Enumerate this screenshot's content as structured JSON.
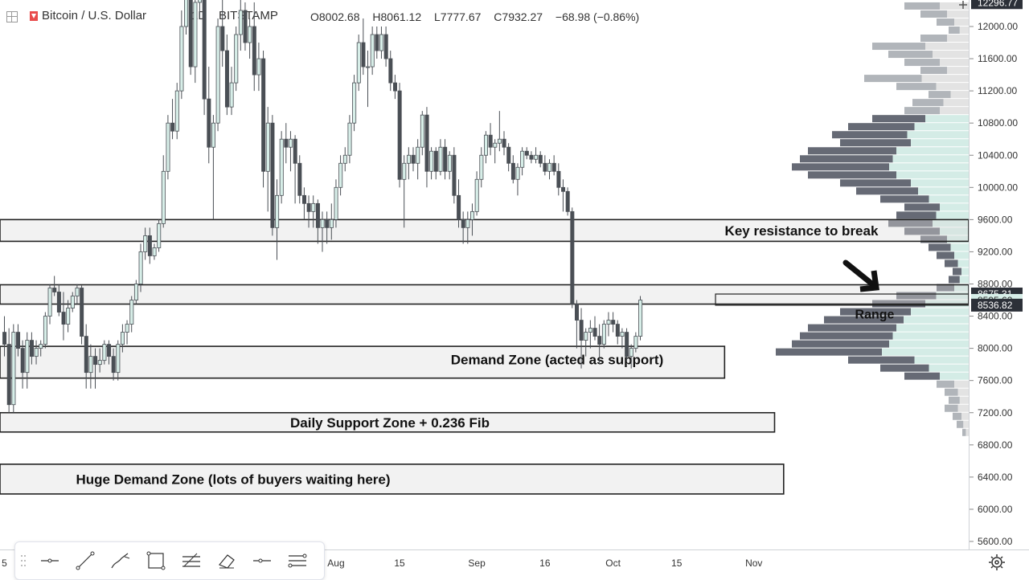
{
  "header": {
    "symbol": "Bitcoin / U.S. Dollar",
    "timeframe": "1D",
    "exchange": "BITSTAMP",
    "open": "O8002.68",
    "high": "H8061.12",
    "low": "L7777.67",
    "close": "C7932.27",
    "change": "−68.98 (−0.86%)"
  },
  "chart_data": {
    "type": "candlestick",
    "y_axis": {
      "ticks": [
        "12000.00",
        "11600.00",
        "11200.00",
        "10800.00",
        "10400.00",
        "10000.00",
        "9600.00",
        "9200.00",
        "8800.00",
        "8400.00",
        "8000.00",
        "7600.00",
        "7200.00",
        "6800.00",
        "6400.00",
        "6000.00",
        "5600.00"
      ],
      "ylim": [
        5400,
        12500
      ],
      "price_labels": [
        {
          "text": "12296.77",
          "value": 12296.77,
          "style": "dark"
        },
        {
          "text": "8675.31",
          "value": 8675.31,
          "style": "dark"
        },
        {
          "text": "8595.62",
          "value": 8595.62,
          "style": "light"
        },
        {
          "text": "8536.82",
          "value": 8536.82,
          "style": "dark"
        }
      ]
    },
    "x_axis": {
      "ticks": [
        {
          "label": "5",
          "index": 0
        },
        {
          "label": "5",
          "index": 57
        },
        {
          "label": "Aug",
          "index": 73
        },
        {
          "label": "15",
          "index": 87
        },
        {
          "label": "Sep",
          "index": 104
        },
        {
          "label": "16",
          "index": 119
        },
        {
          "label": "Oct",
          "index": 134
        },
        {
          "label": "15",
          "index": 148
        },
        {
          "label": "Nov",
          "index": 165
        }
      ]
    },
    "zones": [
      {
        "label": "Key resistance to break",
        "high": 9600,
        "low": 9330,
        "start": 0,
        "end": 175
      },
      {
        "label": "",
        "high": 8790,
        "low": 8550,
        "start": 0,
        "end": 175
      },
      {
        "label": "Demand Zone  (acted as support)",
        "high": 8025,
        "low": 7630,
        "start": 0,
        "end": 159
      },
      {
        "label": "Daily Support Zone + 0.236 Fib",
        "high": 7200,
        "low": 6960,
        "start": 0,
        "end": 170
      },
      {
        "label": "Huge Demand Zone (lots of buyers waiting here)",
        "high": 6560,
        "low": 6190,
        "start": 0,
        "end": 172
      }
    ],
    "annotations": [
      {
        "text": "Range",
        "x_index": 158,
        "y": 8670
      }
    ],
    "series": [
      {
        "values": [
          [
            8200,
            8400,
            7900,
            8050
          ],
          [
            8050,
            8250,
            7200,
            7300
          ],
          [
            7300,
            8300,
            7200,
            8200
          ],
          [
            8200,
            8300,
            7900,
            8000
          ],
          [
            8000,
            8100,
            7500,
            7700
          ],
          [
            7700,
            8200,
            7500,
            8100
          ],
          [
            8100,
            8200,
            7800,
            7900
          ],
          [
            7900,
            8100,
            7800,
            8000
          ],
          [
            8000,
            8100,
            7900,
            8050
          ],
          [
            8050,
            8450,
            8000,
            8400
          ],
          [
            8400,
            8800,
            8300,
            8750
          ],
          [
            8750,
            8900,
            8650,
            8700
          ],
          [
            8700,
            8800,
            8400,
            8450
          ],
          [
            8450,
            8700,
            8100,
            8300
          ],
          [
            8300,
            8600,
            8200,
            8500
          ],
          [
            8500,
            8700,
            8450,
            8650
          ],
          [
            8650,
            8800,
            8550,
            8750
          ],
          [
            8750,
            8780,
            8050,
            8150
          ],
          [
            8150,
            8300,
            7500,
            7700
          ],
          [
            7700,
            8050,
            7500,
            7900
          ],
          [
            7900,
            8000,
            7500,
            7800
          ],
          [
            7800,
            8000,
            7700,
            7850
          ],
          [
            7850,
            8100,
            7800,
            8050
          ],
          [
            8050,
            8100,
            7800,
            7900
          ],
          [
            7900,
            8000,
            7600,
            7700
          ],
          [
            7700,
            8100,
            7600,
            8050
          ],
          [
            8050,
            8300,
            7950,
            8200
          ],
          [
            8200,
            8350,
            8050,
            8300
          ],
          [
            8300,
            8650,
            8200,
            8600
          ],
          [
            8600,
            8850,
            8550,
            8800
          ],
          [
            8800,
            9300,
            8700,
            9200
          ],
          [
            9200,
            9500,
            9100,
            9400
          ],
          [
            9400,
            9500,
            9050,
            9150
          ],
          [
            9150,
            9300,
            9100,
            9250
          ],
          [
            9250,
            9600,
            9200,
            9550
          ],
          [
            9550,
            10400,
            9500,
            10200
          ],
          [
            10200,
            10900,
            10100,
            10800
          ],
          [
            10800,
            11100,
            10600,
            10700
          ],
          [
            10700,
            11300,
            10600,
            11200
          ],
          [
            11200,
            12200,
            11100,
            12000
          ],
          [
            12000,
            12800,
            11900,
            12600
          ],
          [
            12600,
            12900,
            11400,
            11500
          ],
          [
            11500,
            12400,
            11300,
            12300
          ],
          [
            12300,
            12900,
            12100,
            12700
          ],
          [
            12700,
            12800,
            10900,
            11100
          ],
          [
            11100,
            11500,
            10300,
            10500
          ],
          [
            10500,
            10900,
            9600,
            10800
          ],
          [
            10800,
            12100,
            10700,
            12000
          ],
          [
            12000,
            12500,
            11500,
            11700
          ],
          [
            11700,
            11900,
            10900,
            11000
          ],
          [
            11000,
            11500,
            10900,
            11300
          ],
          [
            11300,
            12000,
            11200,
            11900
          ],
          [
            11900,
            12400,
            11700,
            12200
          ],
          [
            12200,
            12300,
            11700,
            11800
          ],
          [
            11800,
            12100,
            11600,
            12000
          ],
          [
            12000,
            12300,
            11200,
            11400
          ],
          [
            11400,
            11800,
            11200,
            11600
          ],
          [
            11600,
            11700,
            10000,
            10200
          ],
          [
            10200,
            11000,
            9700,
            10800
          ],
          [
            10800,
            10900,
            9400,
            9500
          ],
          [
            9500,
            10100,
            9100,
            9900
          ],
          [
            9900,
            10700,
            9800,
            10600
          ],
          [
            10600,
            10800,
            10300,
            10500
          ],
          [
            10500,
            10700,
            10200,
            10600
          ],
          [
            10600,
            10650,
            9800,
            10300
          ],
          [
            10300,
            10400,
            9800,
            9900
          ],
          [
            9900,
            10000,
            9600,
            9800
          ],
          [
            9800,
            9900,
            9500,
            9700
          ],
          [
            9700,
            9900,
            9500,
            9800
          ],
          [
            9800,
            9850,
            9300,
            9500
          ],
          [
            9500,
            9700,
            9200,
            9600
          ],
          [
            9600,
            9700,
            9300,
            9500
          ],
          [
            9500,
            9800,
            9350,
            9600
          ],
          [
            9600,
            10100,
            9500,
            10000
          ],
          [
            10000,
            10400,
            9900,
            10300
          ],
          [
            10300,
            10500,
            10200,
            10400
          ],
          [
            10400,
            10900,
            10300,
            10800
          ],
          [
            10800,
            11400,
            10700,
            11300
          ],
          [
            11300,
            11900,
            11200,
            11800
          ],
          [
            11800,
            12100,
            11400,
            11500
          ],
          [
            11500,
            11700,
            11000,
            11500
          ],
          [
            11500,
            12000,
            11400,
            11900
          ],
          [
            11900,
            12000,
            11600,
            11700
          ],
          [
            11700,
            12000,
            11600,
            11900
          ],
          [
            11900,
            12000,
            11500,
            11600
          ],
          [
            11600,
            11700,
            11200,
            11300
          ],
          [
            11300,
            11400,
            11100,
            11200
          ],
          [
            11200,
            11300,
            10000,
            10100
          ],
          [
            10100,
            10400,
            9500,
            10300
          ],
          [
            10300,
            10500,
            10100,
            10400
          ],
          [
            10400,
            10500,
            10200,
            10300
          ],
          [
            10300,
            10600,
            10100,
            10500
          ],
          [
            10500,
            10950,
            10400,
            10900
          ],
          [
            10900,
            11000,
            10000,
            10200
          ],
          [
            10200,
            10500,
            10100,
            10450
          ],
          [
            10450,
            10500,
            10100,
            10200
          ],
          [
            10200,
            10600,
            10150,
            10500
          ],
          [
            10500,
            10600,
            10100,
            10200
          ],
          [
            10200,
            10450,
            10100,
            10400
          ],
          [
            10400,
            10500,
            9800,
            9900
          ],
          [
            9900,
            10100,
            9500,
            9600
          ],
          [
            9600,
            9700,
            9300,
            9500
          ],
          [
            9500,
            9700,
            9300,
            9600
          ],
          [
            9600,
            9800,
            9400,
            9700
          ],
          [
            9700,
            10200,
            9650,
            10100
          ],
          [
            10100,
            10500,
            10000,
            10400
          ],
          [
            10400,
            10700,
            10300,
            10650
          ],
          [
            10650,
            10800,
            10400,
            10500
          ],
          [
            10500,
            10600,
            10300,
            10550
          ],
          [
            10550,
            10950,
            10450,
            10600
          ],
          [
            10600,
            10700,
            10400,
            10500
          ],
          [
            10500,
            10550,
            10200,
            10300
          ],
          [
            10300,
            10400,
            10050,
            10100
          ],
          [
            10100,
            10300,
            9900,
            10250
          ],
          [
            10250,
            10500,
            10150,
            10450
          ],
          [
            10450,
            10500,
            10350,
            10400
          ],
          [
            10400,
            10450,
            10300,
            10350
          ],
          [
            10350,
            10500,
            10300,
            10400
          ],
          [
            10400,
            10450,
            10250,
            10300
          ],
          [
            10300,
            10400,
            10150,
            10200
          ],
          [
            10200,
            10350,
            10100,
            10300
          ],
          [
            10300,
            10400,
            10150,
            10200
          ],
          [
            10200,
            10300,
            9900,
            10000
          ],
          [
            10000,
            10100,
            9700,
            9950
          ],
          [
            9950,
            10000,
            9650,
            9700
          ],
          [
            9700,
            9750,
            8500,
            8550
          ],
          [
            8550,
            8600,
            8000,
            8350
          ],
          [
            8350,
            8500,
            7750,
            8100
          ],
          [
            8100,
            8250,
            7900,
            8200
          ],
          [
            8200,
            8350,
            8000,
            8250
          ],
          [
            8250,
            8400,
            8100,
            8150
          ],
          [
            8150,
            8300,
            7800,
            8050
          ],
          [
            8050,
            8350,
            8000,
            8300
          ],
          [
            8300,
            8450,
            8150,
            8350
          ],
          [
            8350,
            8450,
            8200,
            8300
          ],
          [
            8300,
            8350,
            8050,
            8150
          ],
          [
            8150,
            8250,
            8000,
            8200
          ],
          [
            8200,
            8250,
            7850,
            7900
          ],
          [
            7900,
            8050,
            7750,
            8000
          ],
          [
            8000,
            8200,
            7950,
            8150
          ],
          [
            8150,
            8650,
            8100,
            8600
          ]
        ]
      }
    ],
    "volume_profile": [
      [
        12250,
        80
      ],
      [
        12150,
        60
      ],
      [
        12050,
        40
      ],
      [
        11950,
        25
      ],
      [
        11850,
        60
      ],
      [
        11750,
        120
      ],
      [
        11650,
        100
      ],
      [
        11550,
        80
      ],
      [
        11450,
        60
      ],
      [
        11350,
        130
      ],
      [
        11250,
        90
      ],
      [
        11150,
        50
      ],
      [
        11050,
        70
      ],
      [
        10950,
        80
      ],
      [
        10850,
        120
      ],
      [
        10750,
        150
      ],
      [
        10650,
        170
      ],
      [
        10550,
        160
      ],
      [
        10450,
        200
      ],
      [
        10350,
        210
      ],
      [
        10250,
        220
      ],
      [
        10150,
        200
      ],
      [
        10050,
        160
      ],
      [
        9950,
        140
      ],
      [
        9850,
        110
      ],
      [
        9750,
        80
      ],
      [
        9650,
        90
      ],
      [
        9550,
        100
      ],
      [
        9450,
        80
      ],
      [
        9350,
        60
      ],
      [
        9250,
        50
      ],
      [
        9150,
        40
      ],
      [
        9050,
        30
      ],
      [
        8950,
        20
      ],
      [
        8850,
        25
      ],
      [
        8750,
        40
      ],
      [
        8650,
        90
      ],
      [
        8550,
        120
      ],
      [
        8450,
        160
      ],
      [
        8350,
        180
      ],
      [
        8250,
        200
      ],
      [
        8150,
        210
      ],
      [
        8050,
        220
      ],
      [
        7950,
        240
      ],
      [
        7850,
        150
      ],
      [
        7750,
        110
      ],
      [
        7650,
        80
      ],
      [
        7550,
        40
      ],
      [
        7450,
        30
      ],
      [
        7350,
        25
      ],
      [
        7250,
        30
      ],
      [
        7150,
        20
      ],
      [
        7050,
        15
      ],
      [
        6950,
        8
      ]
    ]
  },
  "toolbar": {
    "tools": [
      "horizontal-line-tool",
      "trend-line-tool",
      "brush-tool",
      "rectangle-tool",
      "fib-tool",
      "eraser-tool",
      "ray-tool",
      "parallel-channel-tool"
    ]
  }
}
